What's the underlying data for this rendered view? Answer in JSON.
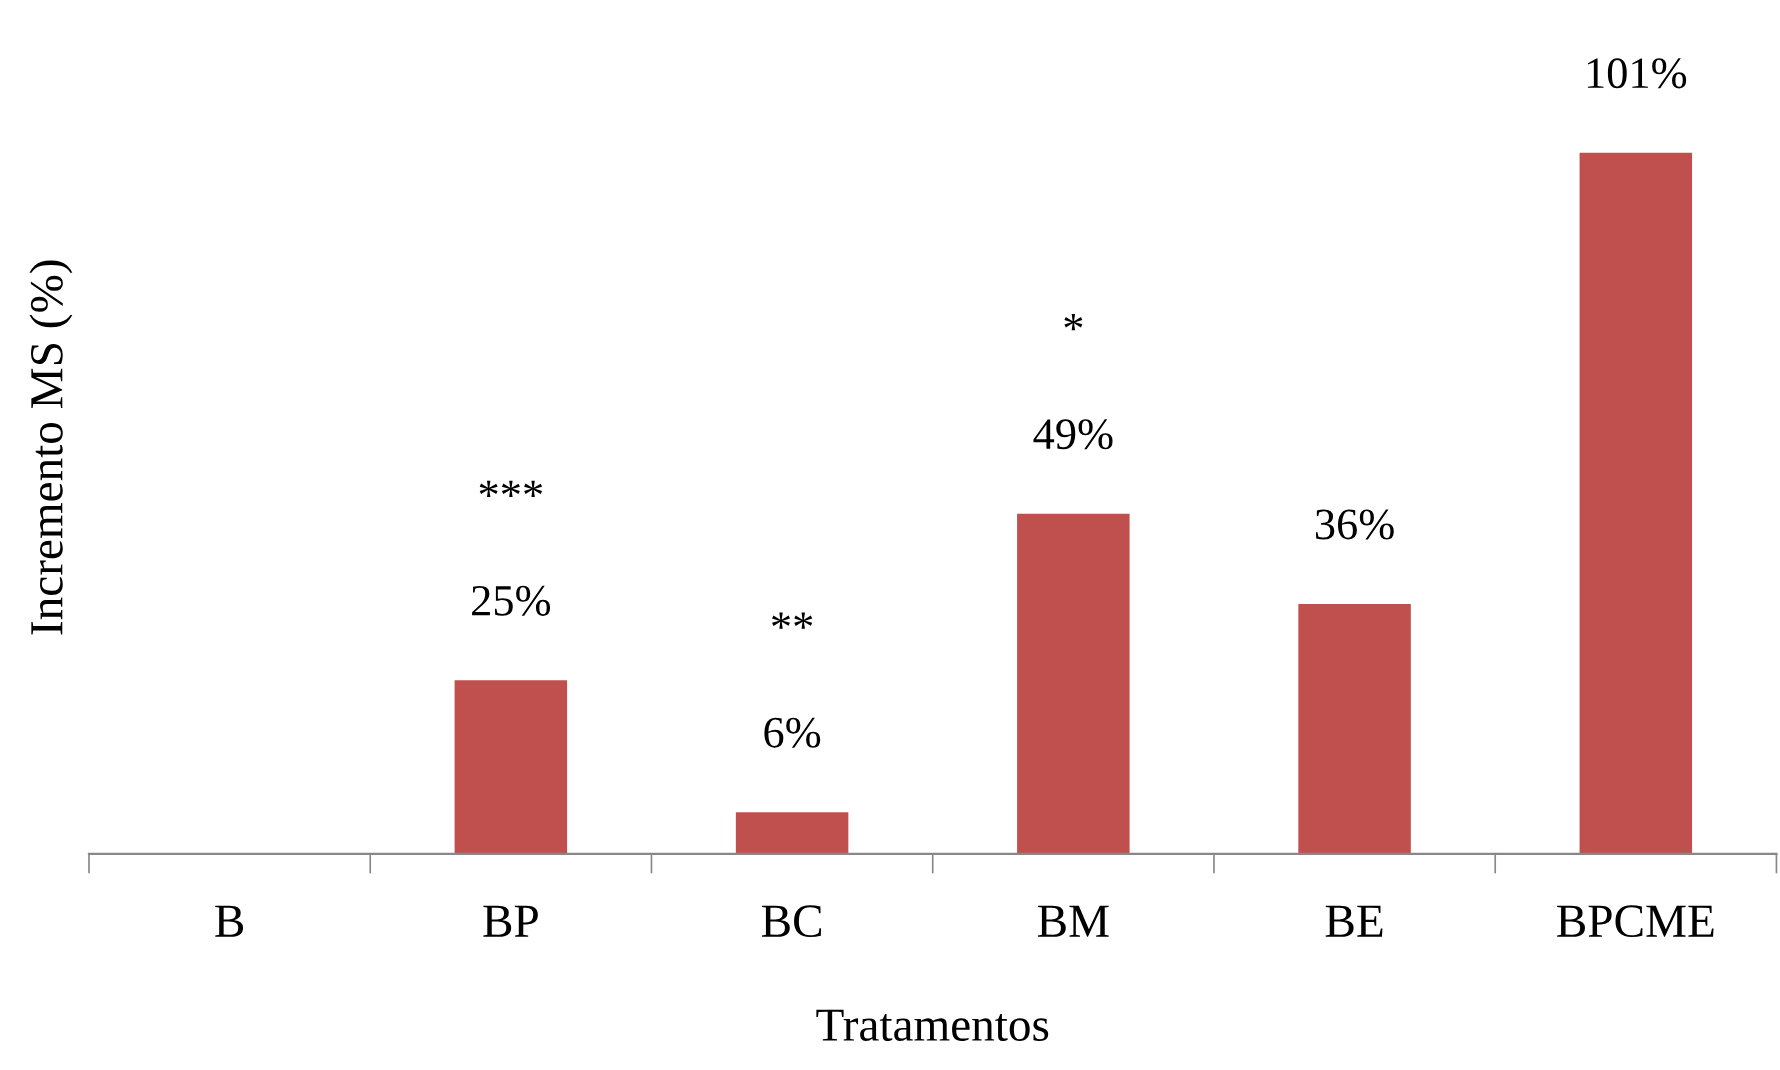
{
  "chart_data": {
    "type": "bar",
    "xlabel": "Tratamentos",
    "ylabel": "Incremento MS (%)",
    "categories": [
      "B",
      "BP",
      "BC",
      "BM",
      "BE",
      "BPCME"
    ],
    "values": [
      0,
      25,
      6,
      49,
      36,
      101
    ],
    "value_labels": [
      null,
      "25%",
      "6%",
      "49%",
      "36%",
      "101%"
    ],
    "color": "#c0504d",
    "annotations": [
      "***",
      "**",
      "*"
    ],
    "grid": false,
    "legend": false
  }
}
